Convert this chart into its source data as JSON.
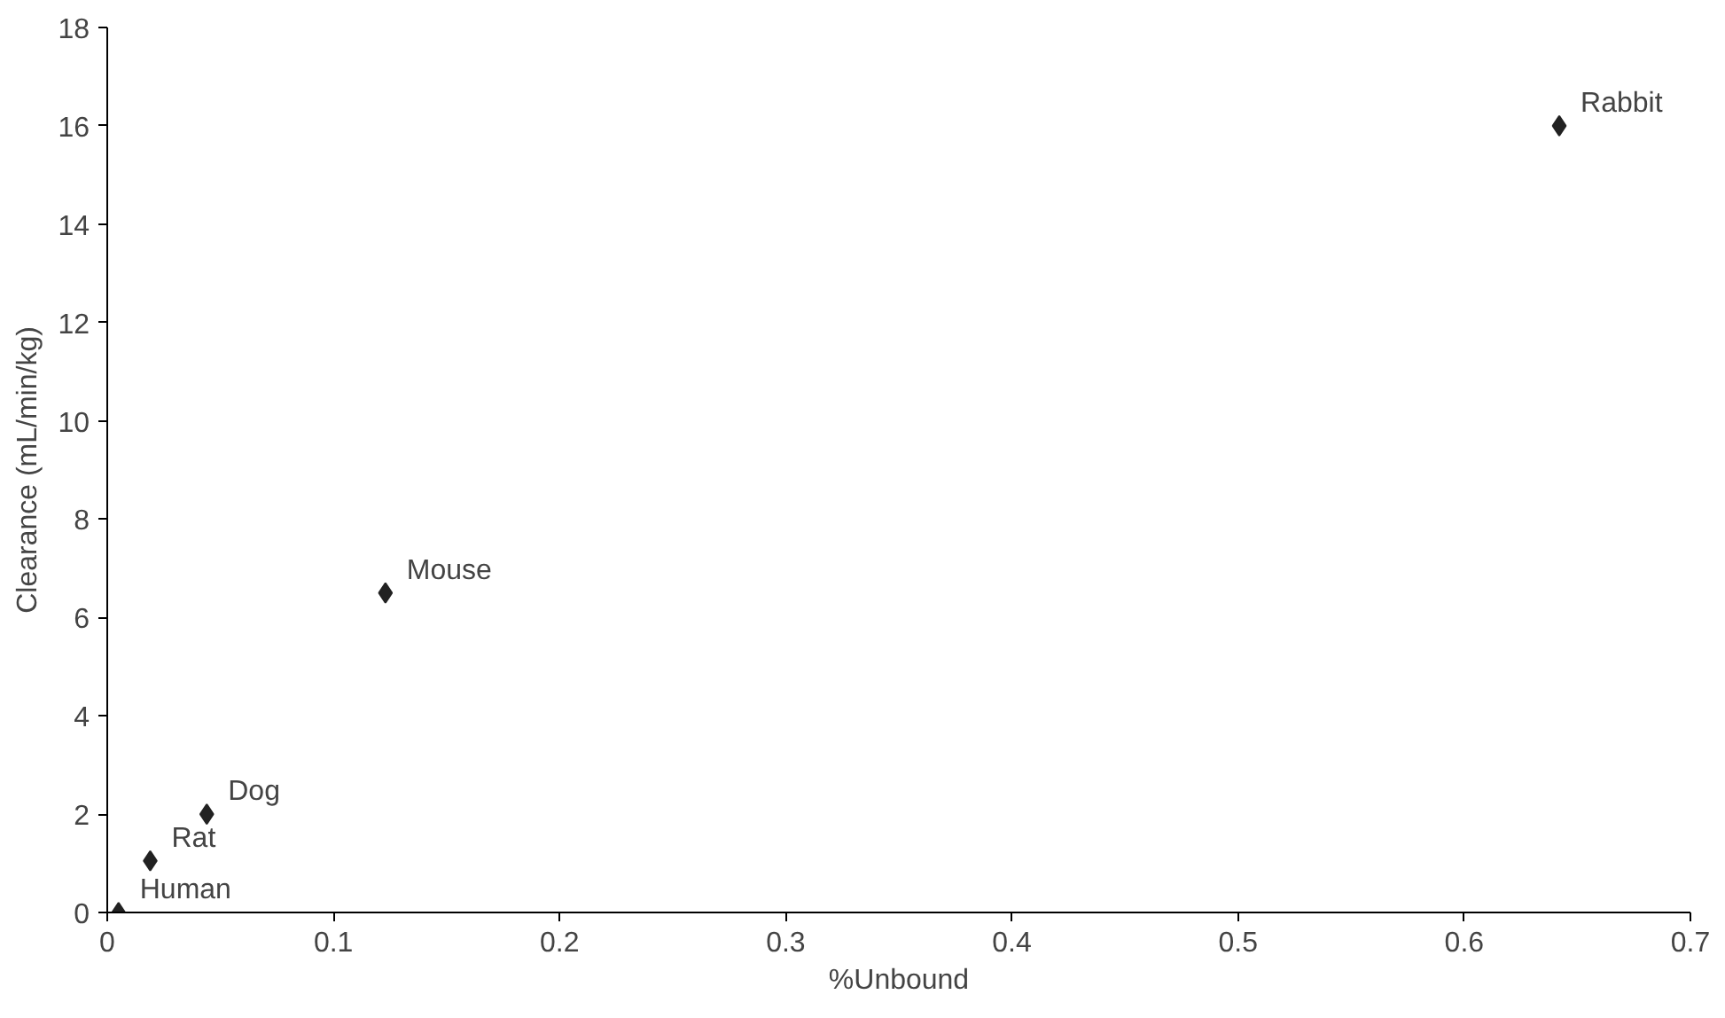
{
  "chart_data": {
    "type": "scatter",
    "xlabel": "%Unbound",
    "ylabel": "Clearance (mL/min/kg)",
    "x": [
      0.005,
      0.019,
      0.044,
      0.123,
      0.642
    ],
    "values": [
      0,
      1.05,
      2,
      6.5,
      16
    ],
    "color": "#222222",
    "marker": "diamond",
    "grid": false,
    "xlim": [
      0,
      0.7
    ],
    "xticks": [
      0,
      0.1,
      0.2,
      0.3,
      0.4,
      0.5,
      0.6,
      0.7
    ],
    "ylim": [
      0,
      18
    ],
    "yticks": [
      0,
      2,
      4,
      6,
      8,
      10,
      12,
      14,
      16,
      18
    ],
    "annotations": [
      {
        "text": "Human",
        "x": 0.005,
        "y": 0
      },
      {
        "text": "Rat",
        "x": 0.019,
        "y": 1.05
      },
      {
        "text": "Dog",
        "x": 0.044,
        "y": 2
      },
      {
        "text": "Mouse",
        "x": 0.123,
        "y": 6.5
      },
      {
        "text": "Rabbit",
        "x": 0.642,
        "y": 16
      }
    ]
  }
}
